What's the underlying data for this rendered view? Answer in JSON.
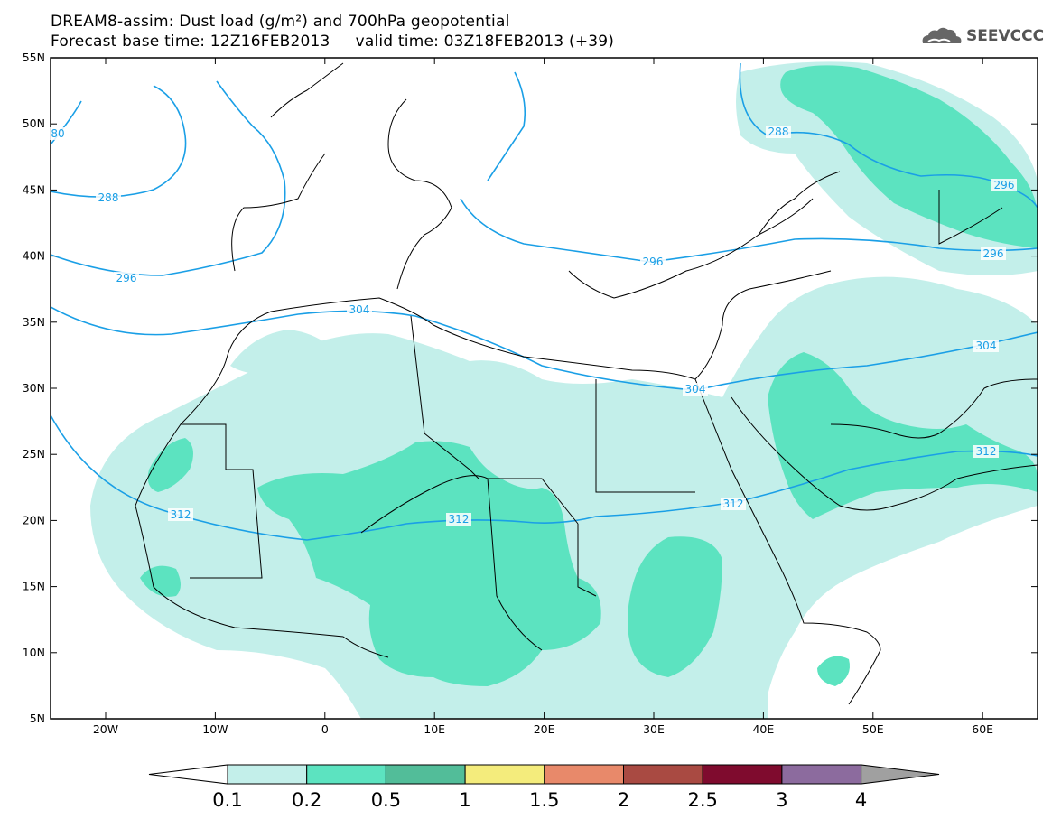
{
  "title": {
    "line1": "DREAM8-assim: Dust load (g/m²) and 700hPa geopotential",
    "line2": "Forecast base time: 12Z16FEB2013     valid time: 03Z18FEB2013 (+39)"
  },
  "logo": {
    "text": "SEEVCCC",
    "icon": "cloud-icon"
  },
  "map": {
    "lat_labels": [
      "55N",
      "50N",
      "45N",
      "40N",
      "35N",
      "30N",
      "25N",
      "20N",
      "15N",
      "10N",
      "5N"
    ],
    "lon_labels": [
      "20W",
      "10W",
      "0",
      "10E",
      "20E",
      "30E",
      "40E",
      "50E",
      "60E"
    ],
    "contour_labels": [
      "80",
      "288",
      "288",
      "296",
      "296",
      "296",
      "296",
      "304",
      "304",
      "304",
      "312",
      "312",
      "312",
      "312"
    ]
  },
  "legend": {
    "labels": [
      "0.1",
      "0.2",
      "0.5",
      "1",
      "1.5",
      "2",
      "2.5",
      "3",
      "4"
    ],
    "colors": [
      "#c3efea",
      "#5ce3c0",
      "#52bd99",
      "#f4ec7c",
      "#e8896a",
      "#a94a42",
      "#7f0b2e",
      "#8c6b9e",
      "#a0a0a0"
    ]
  },
  "colors": {
    "contour": "#1a9fe6",
    "coast": "#000000",
    "dust_light": "#c3efea",
    "dust_mid": "#5ce3c0",
    "dust_dark": "#52bd99"
  }
}
